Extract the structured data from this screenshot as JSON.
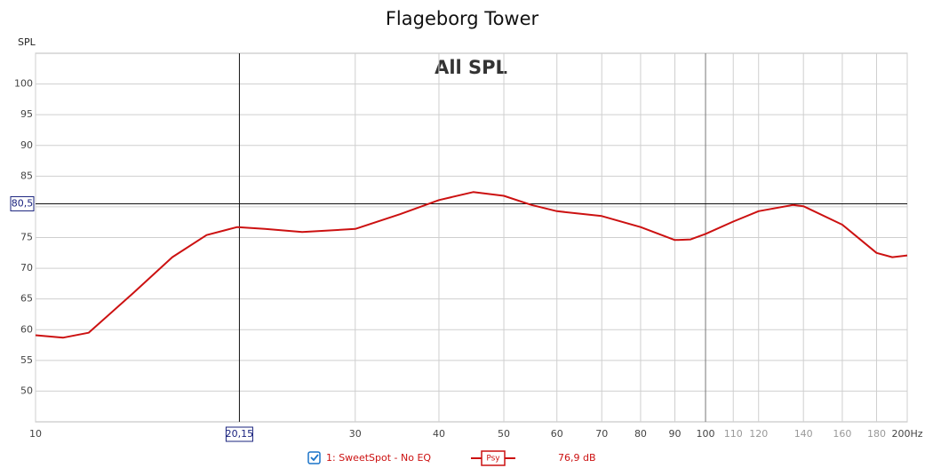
{
  "chart_data": {
    "type": "line",
    "title": "Flageborg Tower",
    "annotation": "All SPL",
    "ylabel": "SPL",
    "xscale": "log",
    "grid": true,
    "xlim": [
      10,
      200
    ],
    "ylim": [
      45,
      105
    ],
    "xticks": [
      10,
      30,
      40,
      50,
      60,
      70,
      80,
      90,
      100,
      110,
      120,
      140,
      160,
      180,
      {
        "value": 200,
        "label": "200Hz"
      }
    ],
    "yticks": [
      50,
      55,
      60,
      65,
      70,
      75,
      80,
      85,
      90,
      95,
      100
    ],
    "x": [
      10,
      11,
      12,
      14,
      16,
      18,
      20,
      22,
      25,
      30,
      35,
      40,
      45,
      50,
      55,
      60,
      70,
      80,
      90,
      95,
      100,
      110,
      120,
      135,
      140,
      160,
      180,
      190,
      200
    ],
    "series": [
      {
        "name": "1: SweetSpot - No EQ",
        "color": "#cc1111",
        "values": [
          59.1,
          58.7,
          59.5,
          66,
          71.8,
          75.4,
          76.7,
          76.4,
          75.9,
          76.4,
          78.8,
          81.1,
          82.4,
          81.8,
          80.3,
          79.3,
          78.5,
          76.7,
          74.6,
          74.7,
          75.6,
          77.6,
          79.3,
          80.3,
          80.1,
          77.1,
          72.5,
          71.8,
          72.1
        ]
      }
    ],
    "cursor": {
      "x": 20.15,
      "x_label": "20,15",
      "y": 80.5,
      "y_label": "80,5"
    },
    "legend": {
      "smoothing": "Psy",
      "readout": "76,9 dB"
    }
  }
}
